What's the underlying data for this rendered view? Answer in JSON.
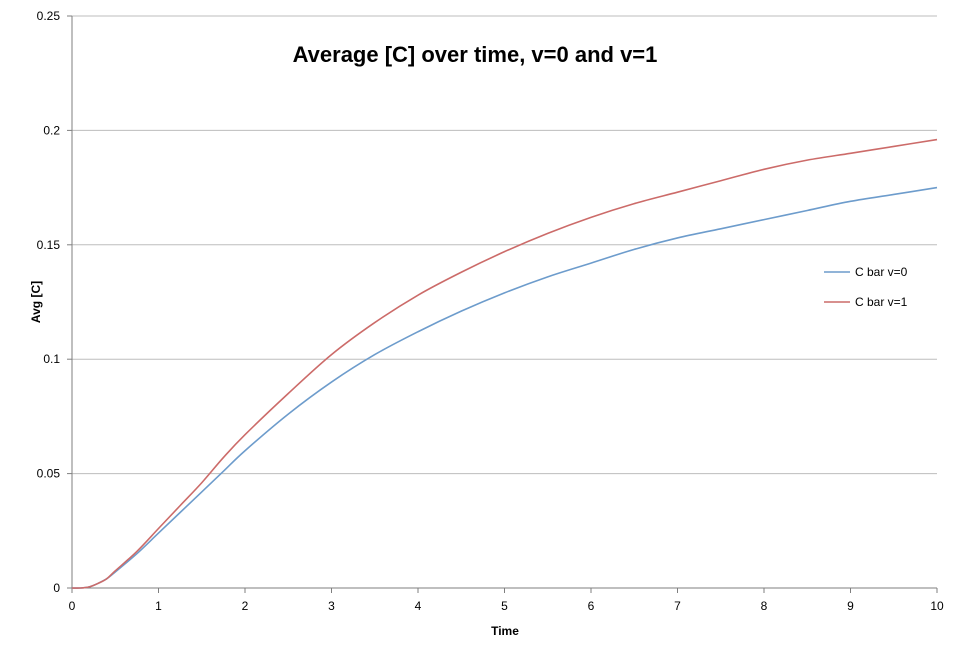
{
  "chart_data": {
    "type": "line",
    "title": "Average [C] over time, v=0 and v=1",
    "xlabel": "Time",
    "ylabel": "Avg [C]",
    "xlim": [
      0,
      10
    ],
    "ylim": [
      0,
      0.25
    ],
    "x_ticks": [
      "0",
      "1",
      "2",
      "3",
      "4",
      "5",
      "6",
      "7",
      "8",
      "9",
      "10"
    ],
    "y_ticks": [
      "0",
      "0.05",
      "0.1",
      "0.15",
      "0.2",
      "0.25"
    ],
    "grid": "horizontal",
    "legend_position": "right",
    "x": [
      0,
      0.1,
      0.2,
      0.3,
      0.4,
      0.5,
      0.75,
      1,
      1.25,
      1.5,
      1.75,
      2,
      2.5,
      3,
      3.5,
      4,
      4.5,
      5,
      5.5,
      6,
      6.5,
      7,
      7.5,
      8,
      8.5,
      9,
      9.5,
      10
    ],
    "series": [
      {
        "name": "C bar v=0",
        "color": "#6d9ccc",
        "values": [
          0,
          0,
          0.0005,
          0.002,
          0.004,
          0.007,
          0.015,
          0.024,
          0.033,
          0.042,
          0.051,
          0.06,
          0.076,
          0.09,
          0.102,
          0.112,
          0.121,
          0.129,
          0.136,
          0.142,
          0.148,
          0.153,
          0.157,
          0.161,
          0.165,
          0.169,
          0.172,
          0.175
        ]
      },
      {
        "name": "C bar v=1",
        "color": "#cc6b69",
        "values": [
          0,
          0,
          0.0005,
          0.002,
          0.004,
          0.0075,
          0.016,
          0.026,
          0.036,
          0.046,
          0.057,
          0.067,
          0.085,
          0.102,
          0.116,
          0.128,
          0.138,
          0.147,
          0.155,
          0.162,
          0.168,
          0.173,
          0.178,
          0.183,
          0.187,
          0.19,
          0.193,
          0.196
        ]
      }
    ]
  }
}
